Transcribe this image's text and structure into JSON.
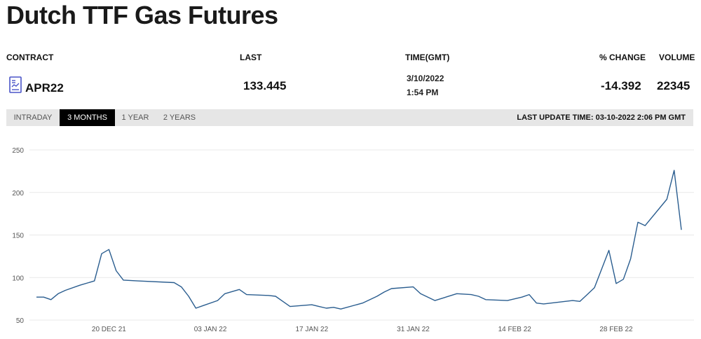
{
  "header": {
    "title": "Dutch TTF Gas Futures"
  },
  "table": {
    "columns": {
      "contract": "CONTRACT",
      "last": "LAST",
      "time": "TIME(GMT)",
      "change": "% CHANGE",
      "volume": "VOLUME"
    },
    "row": {
      "icon": "document-chart-icon",
      "contract": "APR22",
      "last": "133.445",
      "date": "3/10/2022",
      "time": "1:54 PM",
      "change": "-14.392",
      "volume": "22345"
    }
  },
  "tabs": {
    "items": [
      "INTRADAY",
      "3 MONTHS",
      "1 YEAR",
      "2 YEARS"
    ],
    "active": "3 MONTHS",
    "last_update": "LAST UPDATE TIME: 03-10-2022 2:06 PM GMT"
  },
  "colors": {
    "line": "#2a5d8f",
    "grid": "#e8e8e8",
    "active_tab_bg": "#000000",
    "tab_bar_bg": "#e6e6e6"
  },
  "chart_data": {
    "type": "line",
    "title": "",
    "xlabel": "",
    "ylabel": "",
    "ylim": [
      50,
      250
    ],
    "yticks": [
      50,
      100,
      150,
      200,
      250
    ],
    "xticks": [
      {
        "label": "20 DEC 21",
        "date": "2021-12-20"
      },
      {
        "label": "03 JAN 22",
        "date": "2022-01-03"
      },
      {
        "label": "17 JAN 22",
        "date": "2022-01-17"
      },
      {
        "label": "31 JAN 22",
        "date": "2022-01-31"
      },
      {
        "label": "14 FEB 22",
        "date": "2022-02-14"
      },
      {
        "label": "28 FEB 22",
        "date": "2022-02-28"
      }
    ],
    "grid": true,
    "series": [
      {
        "x": [
          "2021-12-10",
          "2021-12-11",
          "2021-12-12",
          "2021-12-13",
          "2021-12-14",
          "2021-12-16",
          "2021-12-18",
          "2021-12-19",
          "2021-12-20",
          "2021-12-21",
          "2021-12-22",
          "2021-12-24",
          "2021-12-29",
          "2021-12-30",
          "2021-12-31",
          "2022-01-01",
          "2022-01-02",
          "2022-01-04",
          "2022-01-05",
          "2022-01-07",
          "2022-01-08",
          "2022-01-11",
          "2022-01-12",
          "2022-01-13",
          "2022-01-14",
          "2022-01-17",
          "2022-01-18",
          "2022-01-19",
          "2022-01-20",
          "2022-01-21",
          "2022-01-24",
          "2022-01-26",
          "2022-01-27",
          "2022-01-28",
          "2022-01-31",
          "2022-02-01",
          "2022-02-03",
          "2022-02-06",
          "2022-02-08",
          "2022-02-09",
          "2022-02-10",
          "2022-02-13",
          "2022-02-15",
          "2022-02-16",
          "2022-02-17",
          "2022-02-18",
          "2022-02-22",
          "2022-02-23",
          "2022-02-24",
          "2022-02-25",
          "2022-02-27",
          "2022-02-28",
          "2022-03-01",
          "2022-03-02",
          "2022-03-03",
          "2022-03-04",
          "2022-03-07",
          "2022-03-08",
          "2022-03-09"
        ],
        "values": [
          77,
          77,
          74,
          81,
          85,
          91,
          96,
          128,
          133,
          108,
          97,
          96,
          94,
          89,
          78,
          64,
          67,
          73,
          81,
          86,
          80,
          79,
          78,
          72,
          66,
          68,
          66,
          64,
          65,
          63,
          70,
          78,
          83,
          87,
          89,
          81,
          73,
          81,
          80,
          78,
          74,
          73,
          77,
          80,
          70,
          69,
          73,
          72,
          80,
          88,
          132,
          93,
          98,
          122,
          165,
          161,
          192,
          226,
          156
        ]
      }
    ]
  }
}
